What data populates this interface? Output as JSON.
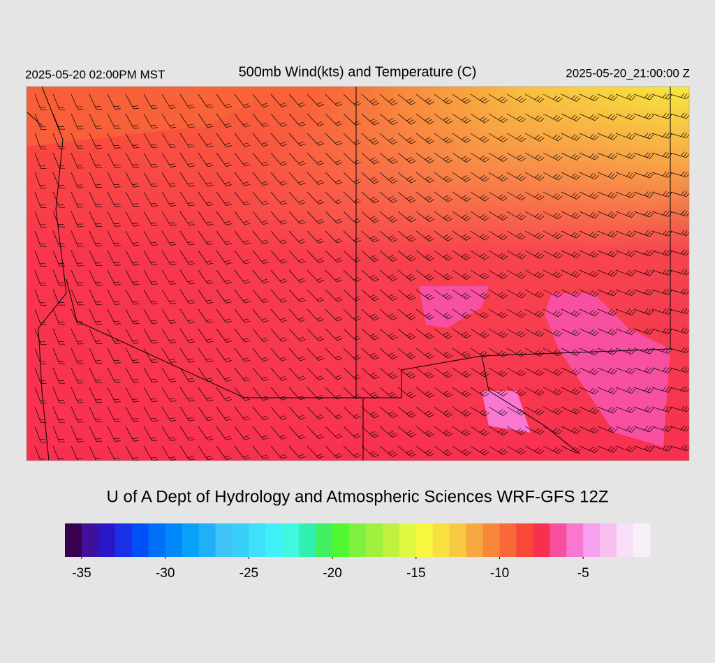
{
  "header": {
    "local_time": "2025-05-20 02:00PM MST",
    "title": "500mb Wind(kts) and Temperature (C)",
    "valid_time": "2025-05-20_21:00:00 Z"
  },
  "credit": "U of A Dept of Hydrology and Atmospheric Sciences WRF-GFS 12Z",
  "colorbar": {
    "lim": [
      -36,
      -1
    ],
    "ticks": [
      -35,
      -30,
      -25,
      -20,
      -15,
      -10,
      -5
    ],
    "colors": [
      "#3a0050",
      "#40109a",
      "#2a18c8",
      "#1a30e8",
      "#0050f8",
      "#0070f8",
      "#0088f8",
      "#08a0f8",
      "#20b0f8",
      "#40c4f8",
      "#38d0f8",
      "#40e0f8",
      "#40f0f8",
      "#40f8e0",
      "#30f0b0",
      "#40f060",
      "#50f830",
      "#80f040",
      "#a0f040",
      "#c0f040",
      "#e0f840",
      "#f8f840",
      "#f8e040",
      "#f8c840",
      "#f8a840",
      "#f88838",
      "#f86838",
      "#f84838",
      "#f83050",
      "#f850a0",
      "#f878d0",
      "#f8a0f0",
      "#f8c0f0",
      "#f8e0f8",
      "#f8f0f8"
    ]
  }
}
